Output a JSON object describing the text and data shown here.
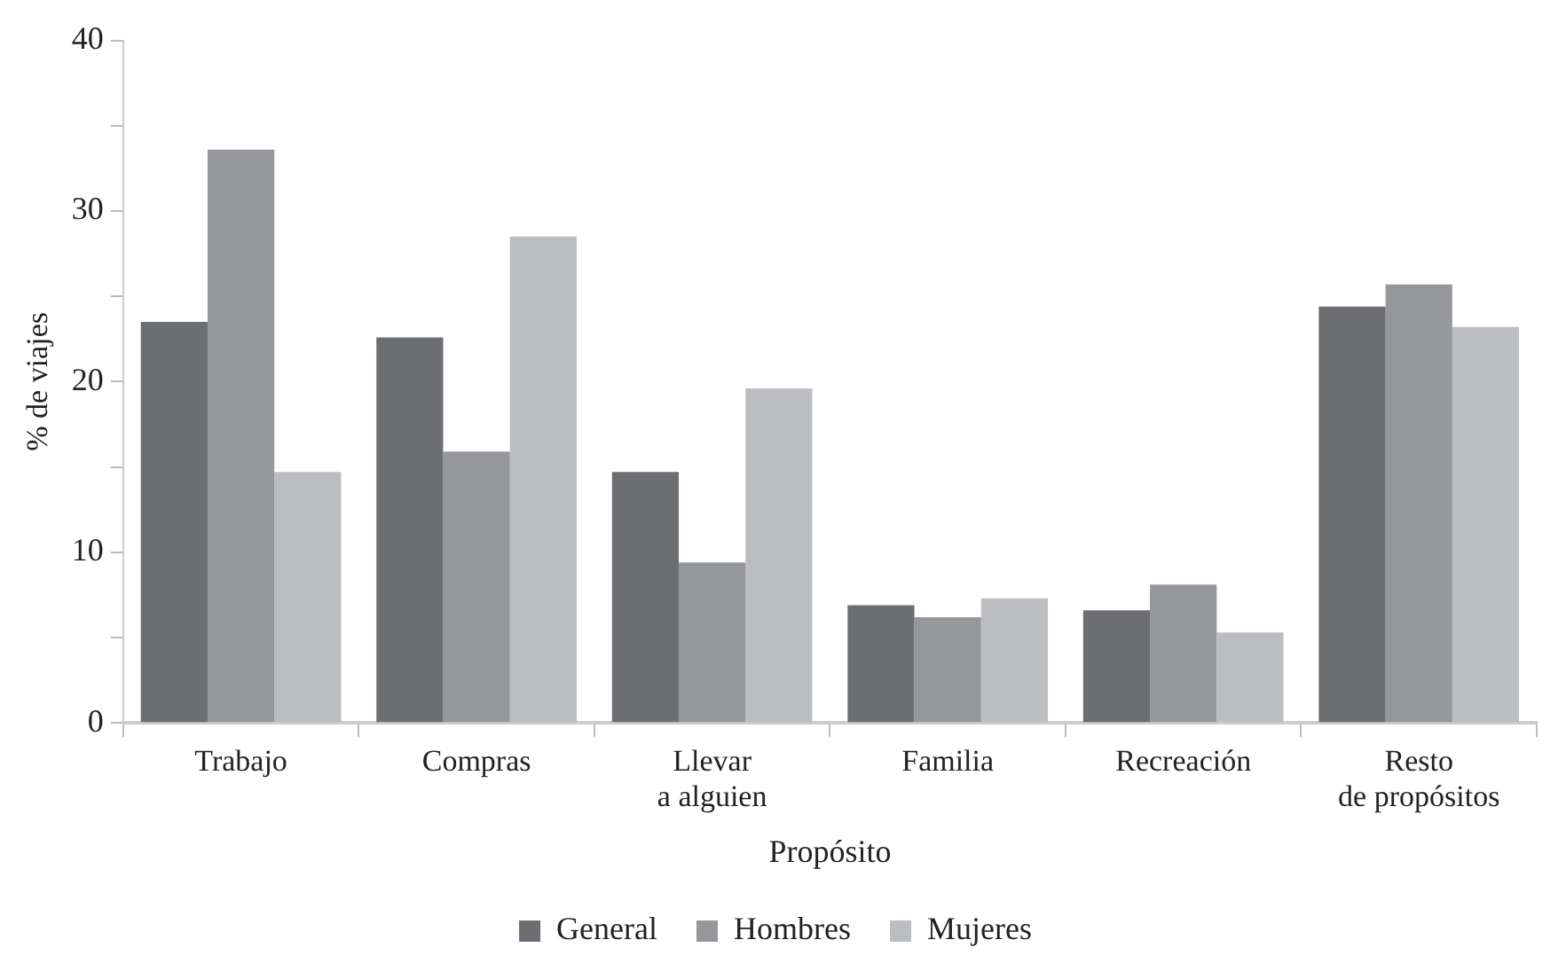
{
  "chart_data": {
    "type": "bar",
    "xlabel": "Propósito",
    "ylabel": "% de viajes",
    "categories": [
      "Trabajo",
      "Compras",
      "Llevar\na alguien",
      "Familia",
      "Recreación",
      "Resto\nde propósitos"
    ],
    "series": [
      {
        "name": "General",
        "color": "#6d6e72",
        "values": [
          23.5,
          22.6,
          14.7,
          6.9,
          6.6,
          24.4
        ]
      },
      {
        "name": "Hombres",
        "color": "#96979b",
        "values": [
          33.6,
          15.9,
          9.4,
          6.2,
          8.1,
          25.7
        ]
      },
      {
        "name": "Mujeres",
        "color": "#bcbdc1",
        "values": [
          14.7,
          28.5,
          19.6,
          7.3,
          5.3,
          23.2
        ]
      }
    ],
    "ylim": [
      0,
      40
    ],
    "yticks": [
      0,
      {
        "value": 5,
        "label": null
      },
      10,
      {
        "value": 15,
        "label": null
      },
      20,
      {
        "value": 25,
        "label": null
      },
      30,
      {
        "value": 35,
        "label": null
      },
      40
    ],
    "legend": "bottom"
  }
}
